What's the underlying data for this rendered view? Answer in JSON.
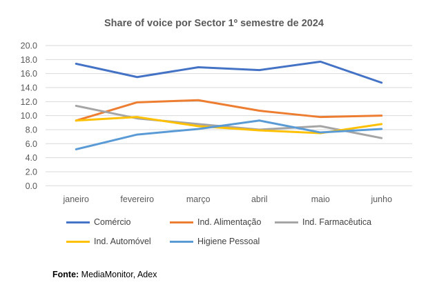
{
  "chart_data": {
    "type": "line",
    "title": "Share of voice por Sector 1º semestre de 2024",
    "categories": [
      "janeiro",
      "fevereiro",
      "março",
      "abril",
      "maio",
      "junho"
    ],
    "ylim": [
      0,
      20
    ],
    "yticks": [
      "0.0",
      "2.0",
      "4.0",
      "6.0",
      "8.0",
      "10.0",
      "12.0",
      "14.0",
      "16.0",
      "18.0",
      "20.0"
    ],
    "grid": true,
    "legend": "bottom",
    "series": [
      {
        "name": "Comércio",
        "color": "#4472C4",
        "values": [
          17.4,
          15.5,
          16.9,
          16.5,
          17.7,
          14.7
        ]
      },
      {
        "name": "Ind. Alimentação",
        "color": "#ED7D31",
        "values": [
          9.3,
          11.9,
          12.2,
          10.7,
          9.8,
          10.0
        ]
      },
      {
        "name": "Ind. Farmacêutica",
        "color": "#A5A5A5",
        "values": [
          11.4,
          9.6,
          8.8,
          8.0,
          8.5,
          6.8
        ]
      },
      {
        "name": "Ind. Automóvel",
        "color": "#FFC000",
        "values": [
          9.3,
          9.8,
          8.5,
          7.9,
          7.5,
          8.8
        ]
      },
      {
        "name": "Higiene Pessoal",
        "color": "#5B9BD5",
        "values": [
          5.2,
          7.3,
          8.1,
          9.3,
          7.6,
          8.1
        ]
      }
    ]
  },
  "source": {
    "label": "Fonte:",
    "text": " MediaMonitor, Adex"
  }
}
